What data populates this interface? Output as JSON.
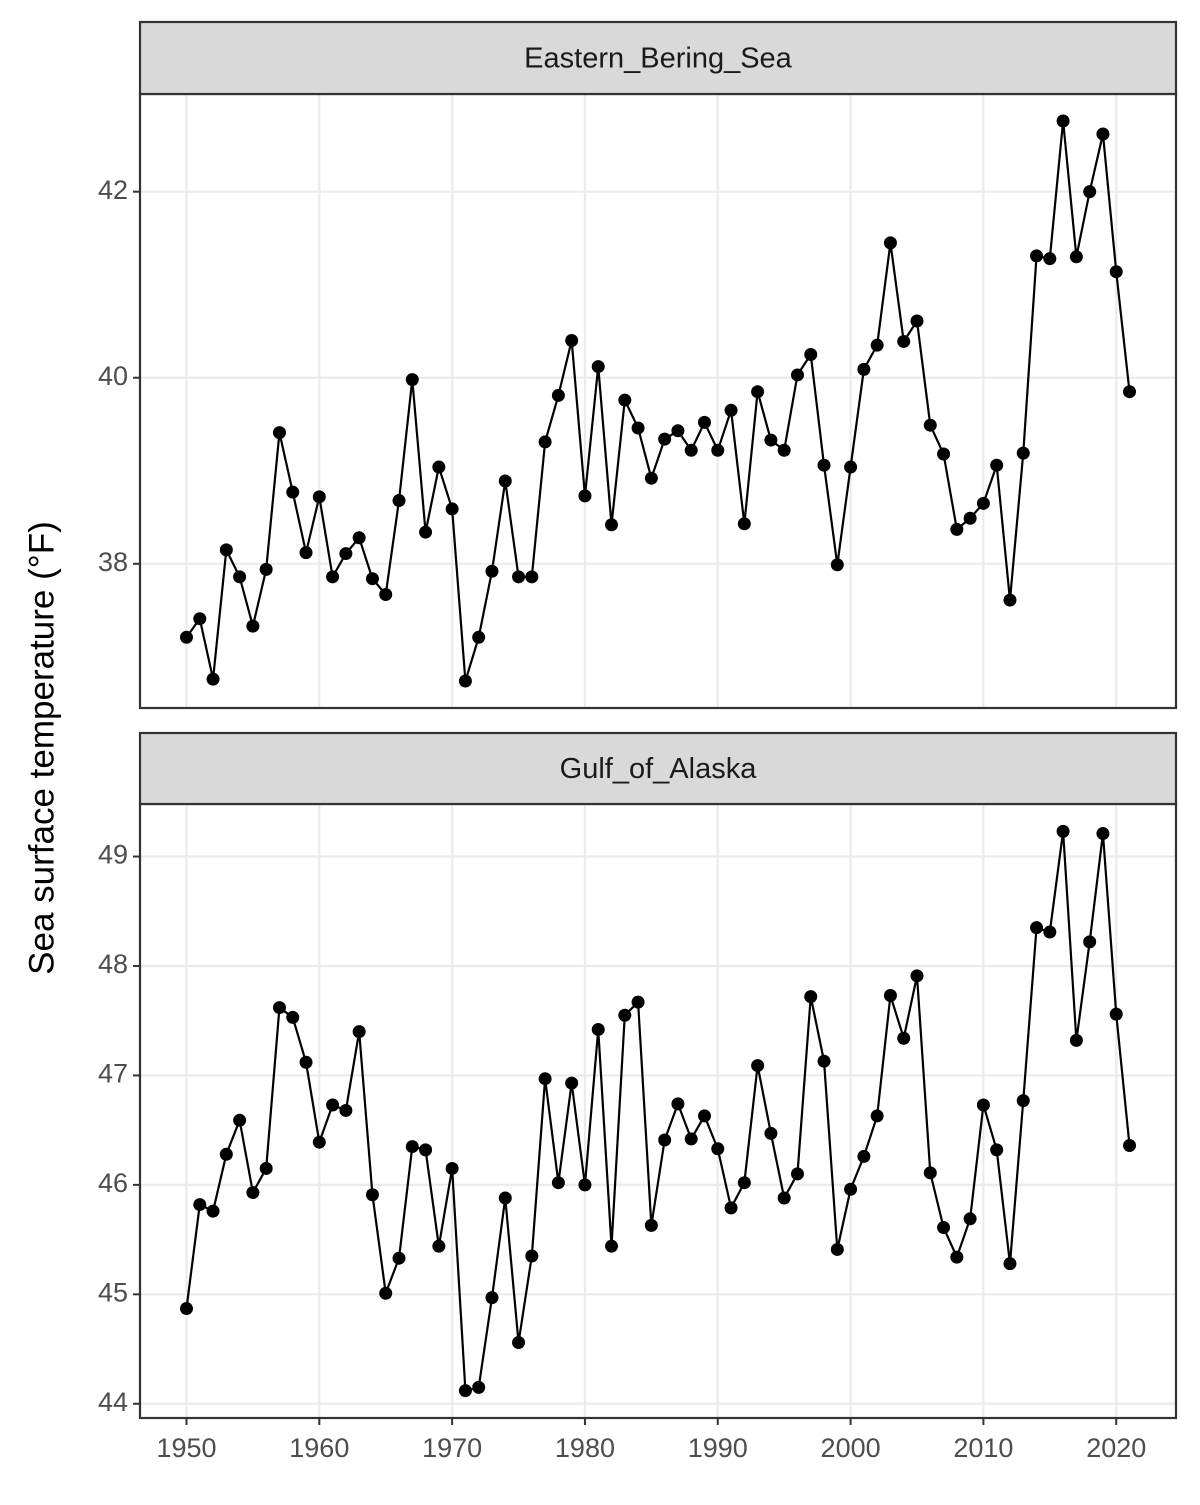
{
  "chart_data": [
    {
      "type": "line",
      "title": "Eastern_Bering_Sea",
      "ylabel": "Sea surface temperature (°F)",
      "color": "#000000",
      "grid": true,
      "x": [
        1950,
        1951,
        1952,
        1953,
        1954,
        1955,
        1956,
        1957,
        1958,
        1959,
        1960,
        1961,
        1962,
        1963,
        1964,
        1965,
        1966,
        1967,
        1968,
        1969,
        1970,
        1971,
        1972,
        1973,
        1974,
        1975,
        1976,
        1977,
        1978,
        1979,
        1980,
        1981,
        1982,
        1983,
        1984,
        1985,
        1986,
        1987,
        1988,
        1989,
        1990,
        1991,
        1992,
        1993,
        1994,
        1995,
        1996,
        1997,
        1998,
        1999,
        2000,
        2001,
        2002,
        2003,
        2004,
        2005,
        2006,
        2007,
        2008,
        2009,
        2010,
        2011,
        2012,
        2013,
        2014,
        2015,
        2016,
        2017,
        2018,
        2019,
        2020,
        2021
      ],
      "values": [
        37.21,
        37.41,
        36.76,
        38.15,
        37.86,
        37.33,
        37.94,
        39.41,
        38.77,
        38.12,
        38.72,
        37.86,
        38.11,
        38.28,
        37.84,
        37.67,
        38.68,
        39.98,
        38.34,
        39.04,
        38.59,
        36.74,
        37.21,
        37.92,
        38.89,
        37.86,
        37.86,
        39.31,
        39.81,
        40.4,
        38.73,
        40.12,
        38.42,
        39.76,
        39.46,
        38.92,
        39.34,
        39.43,
        39.22,
        39.52,
        39.22,
        39.65,
        38.43,
        39.85,
        39.33,
        39.22,
        40.03,
        40.25,
        39.06,
        37.99,
        39.04,
        40.09,
        40.35,
        41.45,
        40.39,
        40.61,
        39.49,
        39.18,
        38.37,
        38.49,
        38.65,
        39.06,
        37.61,
        39.19,
        41.31,
        41.28,
        42.76,
        41.3,
        42.0,
        42.62,
        41.14,
        39.85
      ],
      "xlim": [
        1946.5,
        2024.5
      ],
      "xticks": [
        1950,
        1960,
        1970,
        1980,
        1990,
        2000,
        2010,
        2020
      ],
      "ylim": [
        36.45,
        43.05
      ],
      "yticks": [
        38,
        40,
        42
      ]
    },
    {
      "type": "line",
      "title": "Gulf_of_Alaska",
      "color": "#000000",
      "grid": true,
      "x": [
        1950,
        1951,
        1952,
        1953,
        1954,
        1955,
        1956,
        1957,
        1958,
        1959,
        1960,
        1961,
        1962,
        1963,
        1964,
        1965,
        1966,
        1967,
        1968,
        1969,
        1970,
        1971,
        1972,
        1973,
        1974,
        1975,
        1976,
        1977,
        1978,
        1979,
        1980,
        1981,
        1982,
        1983,
        1984,
        1985,
        1986,
        1987,
        1988,
        1989,
        1990,
        1991,
        1992,
        1993,
        1994,
        1995,
        1996,
        1997,
        1998,
        1999,
        2000,
        2001,
        2002,
        2003,
        2004,
        2005,
        2006,
        2007,
        2008,
        2009,
        2010,
        2011,
        2012,
        2013,
        2014,
        2015,
        2016,
        2017,
        2018,
        2019,
        2020,
        2021
      ],
      "values": [
        44.87,
        45.82,
        45.76,
        46.28,
        46.59,
        45.93,
        46.15,
        47.62,
        47.53,
        47.12,
        46.39,
        46.73,
        46.68,
        47.4,
        45.91,
        45.01,
        45.33,
        46.35,
        46.32,
        45.44,
        46.15,
        44.12,
        44.15,
        44.97,
        45.88,
        44.56,
        45.35,
        46.97,
        46.02,
        46.93,
        46.0,
        47.42,
        45.44,
        47.55,
        47.67,
        45.63,
        46.41,
        46.74,
        46.42,
        46.63,
        46.33,
        45.79,
        46.02,
        47.09,
        46.47,
        45.88,
        46.1,
        47.72,
        47.13,
        45.41,
        45.96,
        46.26,
        46.63,
        47.73,
        47.34,
        47.91,
        46.11,
        45.61,
        45.34,
        45.69,
        46.73,
        46.32,
        45.28,
        46.77,
        48.35,
        48.31,
        49.23,
        47.32,
        48.22,
        49.21,
        47.56,
        46.36
      ],
      "xlim": [
        1946.5,
        2024.5
      ],
      "xticks": [
        1950,
        1960,
        1970,
        1980,
        1990,
        2000,
        2010,
        2020
      ],
      "ylim": [
        43.87,
        49.48
      ],
      "yticks": [
        44,
        45,
        46,
        47,
        48,
        49
      ]
    }
  ]
}
